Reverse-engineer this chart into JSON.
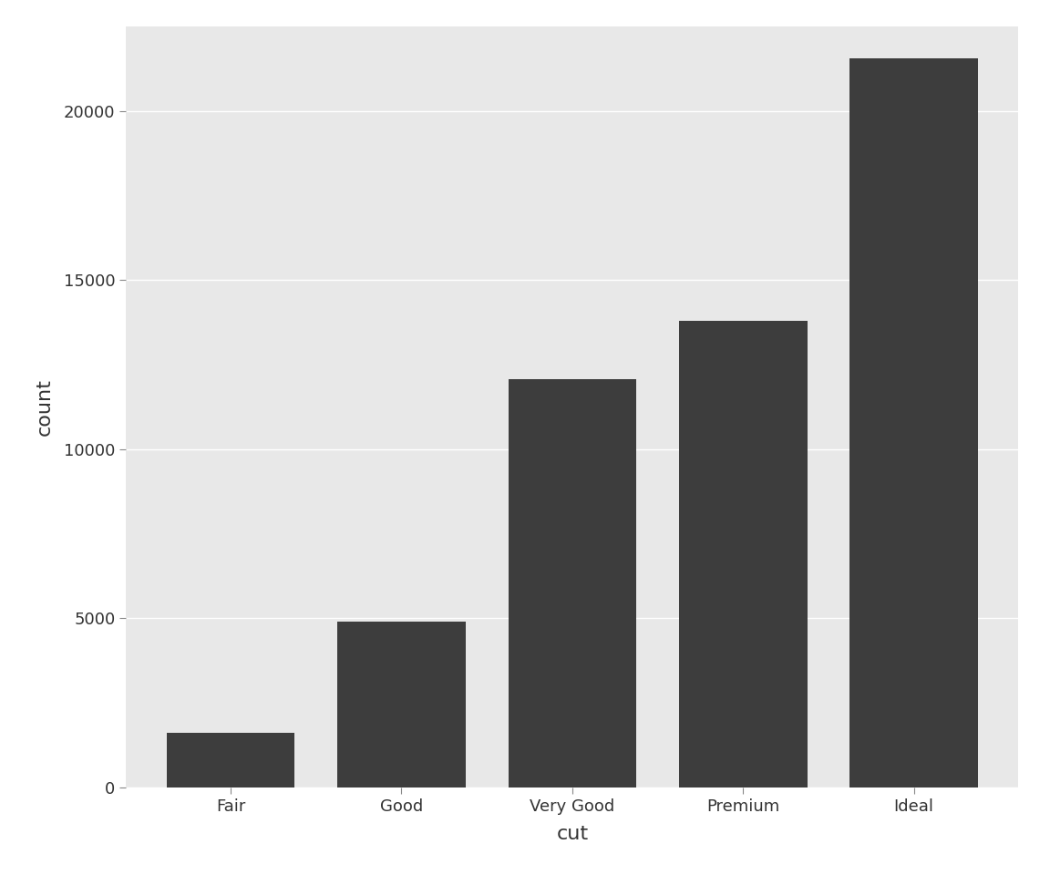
{
  "categories": [
    "Fair",
    "Good",
    "Very Good",
    "Premium",
    "Ideal"
  ],
  "values": [
    1610,
    4906,
    12082,
    13791,
    21551
  ],
  "bar_color": "#3d3d3d",
  "xlabel": "cut",
  "ylabel": "count",
  "ylim": [
    0,
    22500
  ],
  "yticks": [
    0,
    5000,
    10000,
    15000,
    20000
  ],
  "outer_background": "#ffffff",
  "panel_background": "#e8e8e8",
  "grid_color": "#ffffff",
  "xlabel_fontsize": 16,
  "ylabel_fontsize": 16,
  "tick_fontsize": 13,
  "bar_width": 0.75
}
